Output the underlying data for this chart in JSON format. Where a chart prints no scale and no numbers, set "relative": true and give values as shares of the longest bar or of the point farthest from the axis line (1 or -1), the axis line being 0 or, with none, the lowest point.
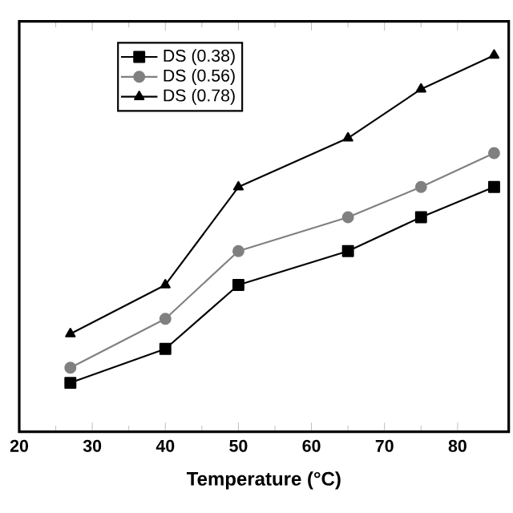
{
  "chart_data": {
    "type": "line",
    "xlabel": "Temperature (°C)",
    "relative": true,
    "xlim": [
      20,
      87
    ],
    "xticks": [
      20,
      30,
      40,
      50,
      60,
      70,
      80
    ],
    "legend": "top left",
    "x": [
      27,
      40,
      50,
      65,
      75,
      85
    ],
    "series": [
      {
        "name": "DS (0.38)",
        "color": "#000000",
        "marker": "square",
        "values": [
          0.13,
          0.22,
          0.39,
          0.48,
          0.57,
          0.65
        ]
      },
      {
        "name": "DS (0.56)",
        "color": "#808080",
        "marker": "circle",
        "values": [
          0.17,
          0.3,
          0.48,
          0.57,
          0.65,
          0.74
        ]
      },
      {
        "name": "DS (0.78)",
        "color": "#000000",
        "marker": "triangle",
        "values": [
          0.26,
          0.39,
          0.65,
          0.78,
          0.91,
          1
        ]
      }
    ]
  }
}
